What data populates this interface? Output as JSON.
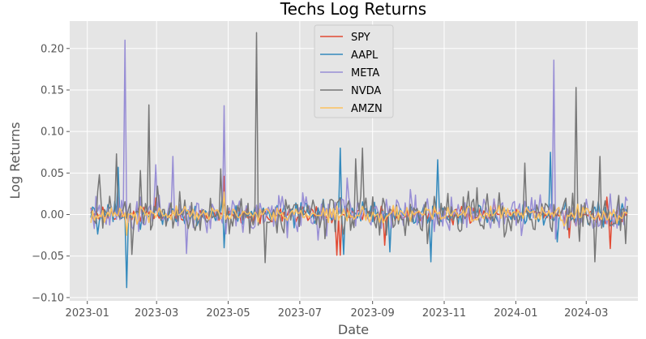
{
  "chart_data": {
    "type": "line",
    "title": "Techs Log Returns",
    "xlabel": "Date",
    "ylabel": "Log Returns",
    "xlim": [
      "2022-12-17",
      "2024-04-14"
    ],
    "ylim": [
      -0.104,
      0.233
    ],
    "x_ticks": [
      "2023-01",
      "2023-03",
      "2023-05",
      "2023-07",
      "2023-09",
      "2023-11",
      "2024-01",
      "2024-03"
    ],
    "y_ticks": [
      -0.1,
      -0.05,
      0.0,
      0.05,
      0.1,
      0.15,
      0.2
    ],
    "y_tick_labels": [
      "−0.10",
      "−0.05",
      "0.00",
      "0.05",
      "0.10",
      "0.15",
      "0.20"
    ],
    "grid": true,
    "legend_position": "top-center",
    "x_start": "2023-01-04",
    "x_end": "2024-04-05",
    "num_points": 315,
    "series": [
      {
        "name": "SPY",
        "color": "#E24A33",
        "spikes": [
          [
            "2023-04-28",
            0.046
          ],
          [
            "2023-08-02",
            -0.049
          ],
          [
            "2023-08-04",
            -0.049
          ],
          [
            "2023-09-12",
            -0.037
          ],
          [
            "2024-02-15",
            -0.028
          ],
          [
            "2024-03-19",
            0.021
          ],
          [
            "2024-03-22",
            -0.041
          ],
          [
            "2023-03-01",
            0.02
          ],
          [
            "2023-12-13",
            0.018
          ]
        ]
      },
      {
        "name": "AAPL",
        "color": "#348ABD",
        "spikes": [
          [
            "2023-01-27",
            0.057
          ],
          [
            "2023-02-03",
            -0.088
          ],
          [
            "2023-04-28",
            -0.04
          ],
          [
            "2023-08-04",
            0.08
          ],
          [
            "2023-08-07",
            -0.048
          ],
          [
            "2023-09-15",
            -0.045
          ],
          [
            "2023-10-20",
            -0.057
          ],
          [
            "2023-10-27",
            0.066
          ],
          [
            "2024-01-31",
            0.075
          ],
          [
            "2024-02-05",
            -0.033
          ]
        ]
      },
      {
        "name": "META",
        "color": "#988ED5",
        "spikes": [
          [
            "2023-02-02",
            0.21
          ],
          [
            "2023-02-28",
            0.06
          ],
          [
            "2023-03-15",
            0.07
          ],
          [
            "2023-03-27",
            -0.047
          ],
          [
            "2023-04-27",
            0.131
          ],
          [
            "2023-08-11",
            0.044
          ],
          [
            "2023-10-03",
            0.03
          ],
          [
            "2024-02-02",
            0.186
          ],
          [
            "2024-03-28",
            0.018
          ]
        ]
      },
      {
        "name": "NVDA",
        "color": "#777777",
        "spikes": [
          [
            "2023-01-12",
            0.048
          ],
          [
            "2023-01-26",
            0.073
          ],
          [
            "2023-02-08",
            -0.048
          ],
          [
            "2023-02-23",
            0.132
          ],
          [
            "2023-02-15",
            0.053
          ],
          [
            "2023-04-24",
            0.055
          ],
          [
            "2023-05-25",
            0.219
          ],
          [
            "2023-06-01",
            -0.058
          ],
          [
            "2023-08-18",
            0.067
          ],
          [
            "2023-08-24",
            0.08
          ],
          [
            "2023-10-17",
            -0.035
          ],
          [
            "2024-01-08",
            0.062
          ],
          [
            "2024-02-22",
            0.153
          ],
          [
            "2024-03-08",
            -0.057
          ],
          [
            "2024-03-12",
            0.07
          ],
          [
            "2024-03-28",
            0.023
          ],
          [
            "2024-04-04",
            -0.035
          ]
        ]
      },
      {
        "name": "AMZN",
        "color": "#FBC15E",
        "spikes": [
          [
            "2023-04-28",
            0.027
          ],
          [
            "2023-02-03",
            -0.025
          ]
        ]
      }
    ]
  }
}
